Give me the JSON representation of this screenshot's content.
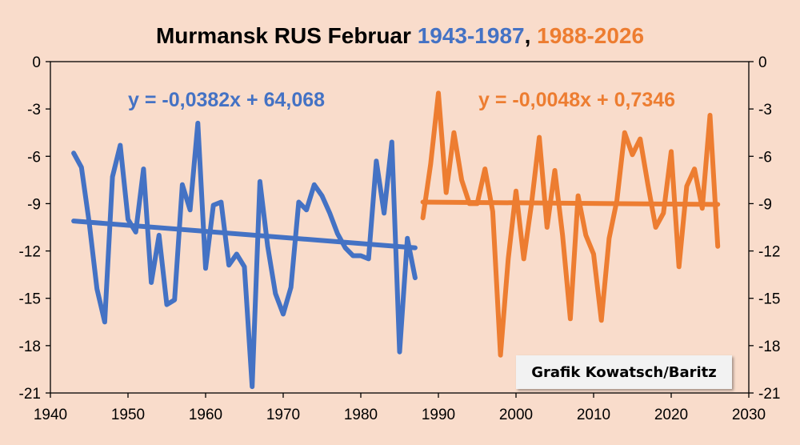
{
  "chart_data": {
    "type": "line",
    "title": {
      "main": "Murmansk RUS Februar ",
      "range1": "1943-1987",
      "sep": ", ",
      "range2": "1988-2026"
    },
    "xlim": [
      1940,
      2030
    ],
    "ylim": [
      -21,
      0
    ],
    "x_ticks": [
      1940,
      1950,
      1960,
      1970,
      1980,
      1990,
      2000,
      2010,
      2020,
      2030
    ],
    "y_ticks": [
      0,
      -3,
      -6,
      -9,
      -12,
      -15,
      -18,
      -21
    ],
    "grid": false,
    "series": [
      {
        "color": "#4472c4",
        "x": [
          1943,
          1944,
          1945,
          1946,
          1947,
          1948,
          1949,
          1950,
          1951,
          1952,
          1953,
          1954,
          1955,
          1956,
          1957,
          1958,
          1959,
          1960,
          1961,
          1962,
          1963,
          1964,
          1965,
          1966,
          1967,
          1968,
          1969,
          1970,
          1971,
          1972,
          1973,
          1974,
          1975,
          1976,
          1977,
          1978,
          1979,
          1980,
          1981,
          1982,
          1983,
          1984,
          1985,
          1986,
          1987
        ],
        "values": [
          -5.8,
          -6.7,
          -10.2,
          -14.4,
          -16.5,
          -7.3,
          -5.3,
          -10.0,
          -10.8,
          -6.8,
          -14.0,
          -11.0,
          -15.4,
          -15.1,
          -7.8,
          -9.4,
          -3.9,
          -13.1,
          -9.1,
          -8.9,
          -12.9,
          -12.2,
          -13.0,
          -20.6,
          -7.6,
          -11.7,
          -14.7,
          -16.0,
          -14.3,
          -8.9,
          -9.4,
          -7.8,
          -8.5,
          -9.6,
          -10.9,
          -11.8,
          -12.3,
          -12.3,
          -12.5,
          -6.3,
          -9.6,
          -5.1,
          -18.4,
          -11.2,
          -13.7
        ],
        "trend_label": "y = -0,0382x + 64,068",
        "trend_start": [
          1943,
          -10.1
        ],
        "trend_end": [
          1987,
          -11.8
        ]
      },
      {
        "color": "#ed7d31",
        "x": [
          1988,
          1989,
          1990,
          1991,
          1992,
          1993,
          1994,
          1995,
          1996,
          1997,
          1998,
          1999,
          2000,
          2001,
          2002,
          2003,
          2004,
          2005,
          2006,
          2007,
          2008,
          2009,
          2010,
          2011,
          2012,
          2013,
          2014,
          2015,
          2016,
          2017,
          2018,
          2019,
          2020,
          2021,
          2022,
          2023,
          2024,
          2025,
          2026
        ],
        "values": [
          -9.9,
          -6.5,
          -2.0,
          -8.3,
          -4.5,
          -7.5,
          -9.0,
          -9.0,
          -6.8,
          -9.5,
          -18.6,
          -12.5,
          -8.2,
          -12.5,
          -9.0,
          -4.8,
          -10.5,
          -6.9,
          -11.0,
          -16.3,
          -8.5,
          -11.0,
          -12.2,
          -16.4,
          -11.2,
          -8.8,
          -4.5,
          -5.9,
          -4.9,
          -7.8,
          -10.5,
          -9.6,
          -5.7,
          -13.0,
          -7.9,
          -6.8,
          -9.3,
          -3.4,
          -11.7
        ],
        "trend_label": "y = -0,0048x + 0,7346",
        "trend_start": [
          1988,
          -8.9
        ],
        "trend_end": [
          2026,
          -9.05
        ]
      }
    ]
  },
  "credit": "Grafik Kowatsch/Baritz"
}
